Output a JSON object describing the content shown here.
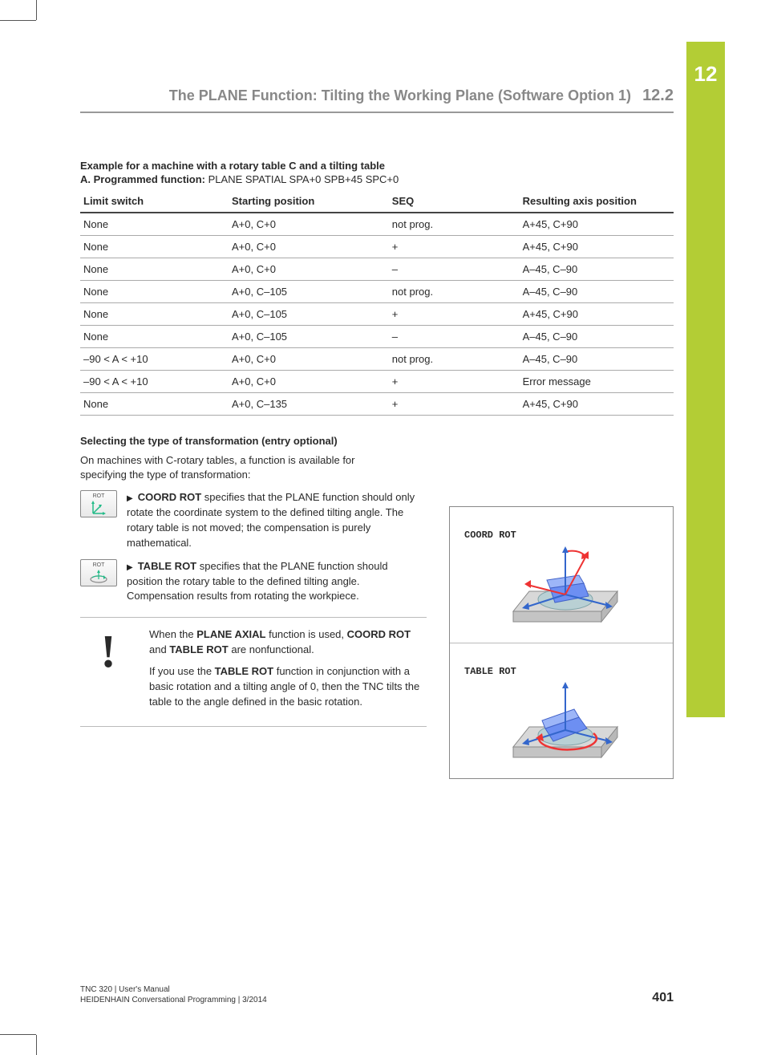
{
  "chapter_number": "12",
  "header": {
    "title": "The PLANE Function: Tilting the Working Plane (Software Option 1)",
    "section": "12.2"
  },
  "example_caption_line1": "Example for a machine with a rotary table C and a tilting table",
  "example_caption_line2a": "A. Programmed function: ",
  "example_caption_line2b": "PLANE SPATIAL SPA+0 SPB+45 SPC+0",
  "table": {
    "columns": [
      "Limit switch",
      "Starting position",
      "SEQ",
      "Resulting axis position"
    ],
    "rows": [
      [
        "None",
        "A+0, C+0",
        "not prog.",
        "A+45, C+90"
      ],
      [
        "None",
        "A+0, C+0",
        "+",
        "A+45, C+90"
      ],
      [
        "None",
        "A+0, C+0",
        "–",
        "A–45, C–90"
      ],
      [
        "None",
        "A+0, C–105",
        "not prog.",
        "A–45, C–90"
      ],
      [
        "None",
        "A+0, C–105",
        "+",
        "A+45, C+90"
      ],
      [
        "None",
        "A+0, C–105",
        "–",
        "A–45, C–90"
      ],
      [
        "–90 < A < +10",
        "A+0, C+0",
        "not prog.",
        "A–45, C–90"
      ],
      [
        "–90 < A < +10",
        "A+0, C+0",
        "+",
        "Error message"
      ],
      [
        "None",
        "A+0, C–135",
        "+",
        "A+45, C+90"
      ]
    ]
  },
  "subhead": "Selecting the type of transformation (entry optional)",
  "intro": "On machines with C-rotary tables, a function is available for specifying the type of transformation:",
  "bullets": [
    {
      "softkey": "ROT",
      "bold": "COORD ROT",
      "tail": " specifies that the PLANE function should only rotate the coordinate system to the defined tilting angle. The rotary table is not moved; the compensation is purely mathematical."
    },
    {
      "softkey": "ROT",
      "bold": "TABLE ROT",
      "tail": " specifies that the PLANE function should position the rotary table to the defined tilting angle. Compensation results from rotating the workpiece."
    }
  ],
  "note": {
    "p1a": "When the ",
    "p1b": "PLANE AXIAL",
    "p1c": " function is used, ",
    "p1d": "COORD ROT",
    "p1e": " and ",
    "p1f": "TABLE ROT",
    "p1g": " are nonfunctional.",
    "p2a": "If you use the ",
    "p2b": "TABLE ROT",
    "p2c": " function in conjunction with a basic rotation and a tilting angle of 0, then the TNC tilts the table to the angle defined in the basic rotation."
  },
  "diagram": {
    "label1": "COORD ROT",
    "label2": "TABLE ROT"
  },
  "footer": {
    "line1": "TNC 320 | User's Manual",
    "line2": "HEIDENHAIN Conversational Programming | 3/2014",
    "page": "401"
  },
  "colors": {
    "accent": "#b3cd35",
    "arrow_red": "#e33",
    "arrow_blue": "#36c",
    "arrow_green": "#2b8",
    "platform": "#d8d8d8",
    "disc": "#b9d0d4",
    "wp": "#6d8ff2"
  }
}
